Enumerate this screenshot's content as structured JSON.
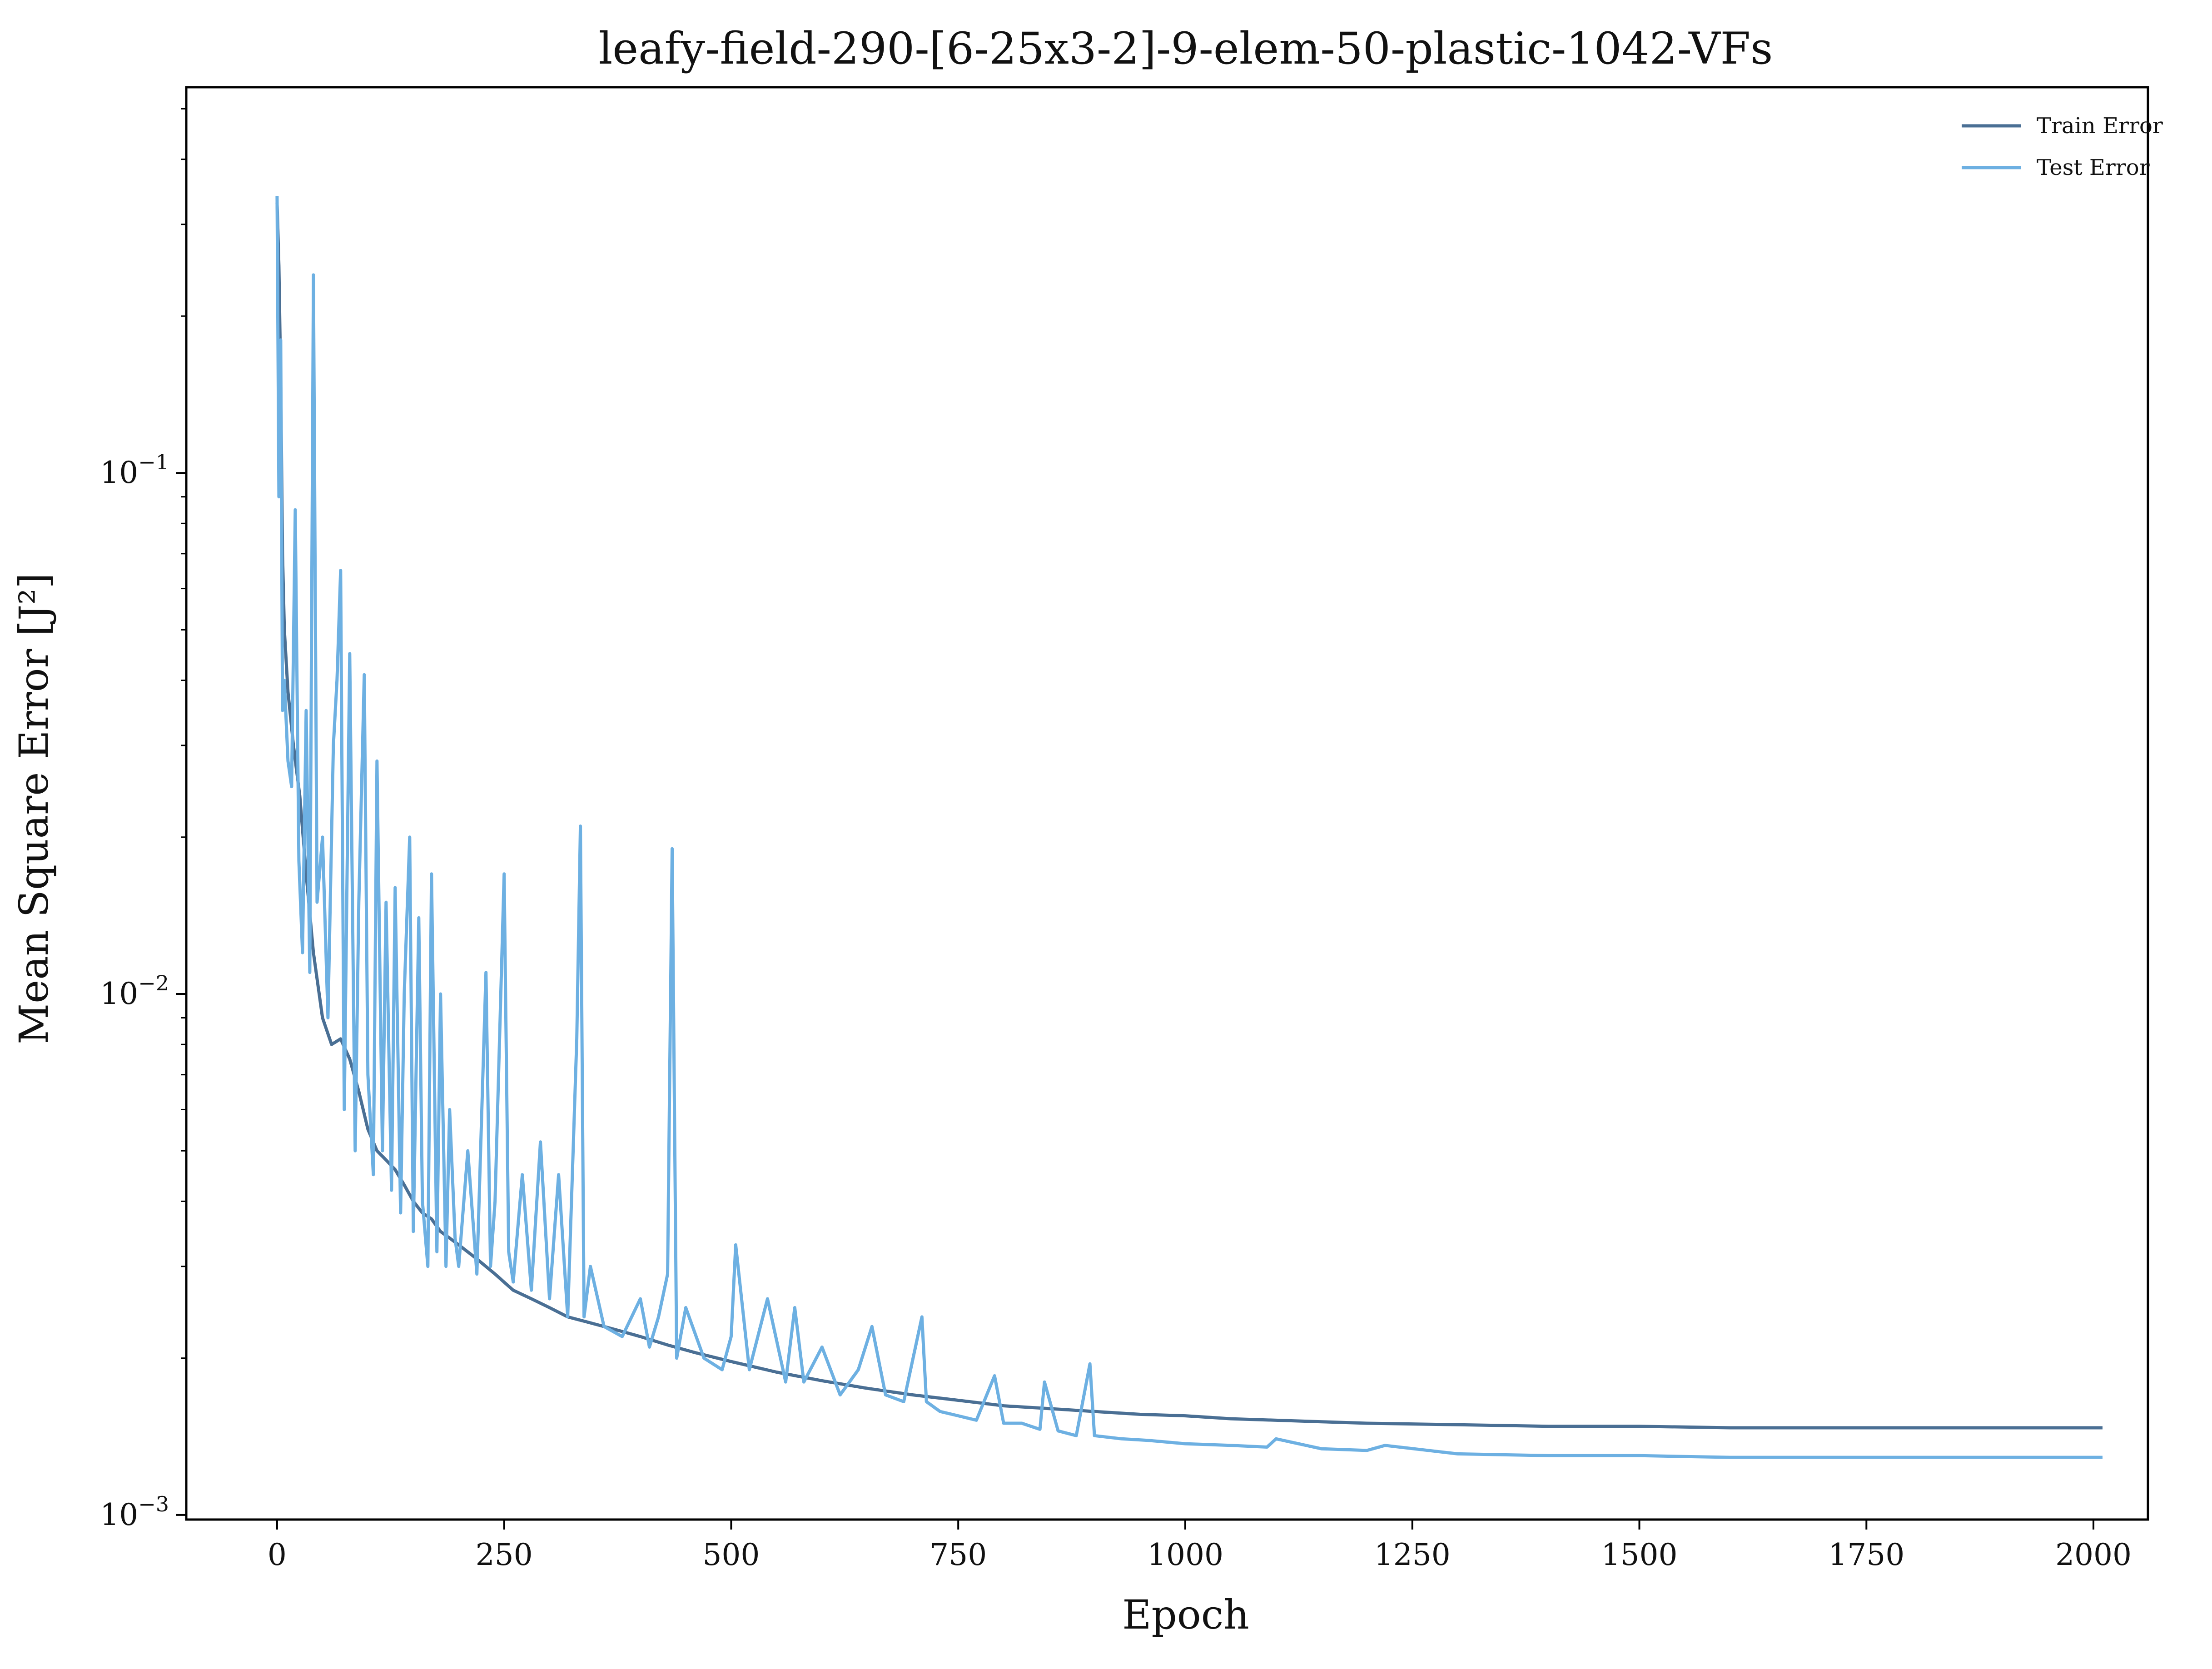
{
  "colors": {
    "train": "#4a6f94",
    "test": "#6db0e2",
    "axis": "#000000"
  },
  "chart_data": {
    "type": "line",
    "title": "leafy-field-290-[6-25x3-2]-9-elem-50-plastic-1042-VFs",
    "xlabel": "Epoch",
    "ylabel": "Mean Square Error [J²]",
    "xlim": [
      -100,
      2060
    ],
    "ylim": [
      0.00098,
      0.55
    ],
    "yscale": "log",
    "grid": false,
    "legend_position": "top-right",
    "xticks": [
      0,
      250,
      500,
      750,
      1000,
      1250,
      1500,
      1750,
      2000
    ],
    "xtick_labels": [
      "0",
      "250",
      "500",
      "750",
      "1000",
      "1250",
      "1500",
      "1750",
      "2000"
    ],
    "yticks": [
      0.001,
      0.01,
      0.1
    ],
    "ytick_labels": [
      {
        "base": "10",
        "exp": "−3"
      },
      {
        "base": "10",
        "exp": "−2"
      },
      {
        "base": "10",
        "exp": "−1"
      }
    ],
    "series": [
      {
        "name": "Train Error",
        "color": "#4a6f94",
        "x": [
          0,
          2,
          4,
          6,
          8,
          12,
          18,
          25,
          32,
          40,
          50,
          60,
          70,
          80,
          90,
          100,
          110,
          120,
          130,
          140,
          150,
          160,
          170,
          180,
          190,
          200,
          220,
          240,
          260,
          280,
          300,
          320,
          340,
          360,
          380,
          400,
          430,
          460,
          500,
          550,
          600,
          650,
          700,
          750,
          800,
          850,
          900,
          950,
          1000,
          1050,
          1100,
          1150,
          1200,
          1300,
          1400,
          1500,
          1600,
          1700,
          1800,
          1900,
          2010
        ],
        "y": [
          0.33,
          0.25,
          0.15,
          0.07,
          0.05,
          0.038,
          0.03,
          0.024,
          0.017,
          0.012,
          0.009,
          0.008,
          0.0082,
          0.0075,
          0.0065,
          0.0055,
          0.005,
          0.0048,
          0.0046,
          0.0043,
          0.004,
          0.0038,
          0.0037,
          0.0035,
          0.0034,
          0.0033,
          0.0031,
          0.0029,
          0.0027,
          0.0026,
          0.0025,
          0.0024,
          0.00235,
          0.0023,
          0.00225,
          0.0022,
          0.00212,
          0.00205,
          0.00197,
          0.00188,
          0.00181,
          0.00175,
          0.0017,
          0.00166,
          0.00162,
          0.0016,
          0.00158,
          0.00156,
          0.00155,
          0.00153,
          0.00152,
          0.00151,
          0.0015,
          0.00149,
          0.00148,
          0.00148,
          0.00147,
          0.00147,
          0.00147,
          0.00147,
          0.00147
        ]
      },
      {
        "name": "Test Error",
        "color": "#6db0e2",
        "x": [
          0,
          2,
          4,
          6,
          8,
          12,
          16,
          20,
          24,
          28,
          32,
          36,
          40,
          44,
          50,
          56,
          62,
          66,
          70,
          74,
          80,
          86,
          90,
          96,
          100,
          106,
          110,
          116,
          120,
          126,
          130,
          136,
          140,
          146,
          150,
          156,
          160,
          166,
          170,
          176,
          180,
          186,
          190,
          196,
          200,
          210,
          220,
          230,
          235,
          240,
          250,
          255,
          260,
          270,
          280,
          290,
          300,
          310,
          320,
          330,
          334,
          338,
          345,
          360,
          380,
          400,
          410,
          420,
          430,
          435,
          440,
          450,
          470,
          490,
          500,
          505,
          520,
          540,
          560,
          570,
          580,
          600,
          620,
          640,
          655,
          670,
          690,
          710,
          715,
          730,
          750,
          770,
          790,
          800,
          820,
          840,
          845,
          860,
          880,
          895,
          900,
          930,
          960,
          1000,
          1050,
          1090,
          1100,
          1150,
          1200,
          1220,
          1300,
          1400,
          1500,
          1600,
          1700,
          1800,
          1900,
          2010
        ],
        "y": [
          0.34,
          0.09,
          0.18,
          0.035,
          0.04,
          0.028,
          0.025,
          0.085,
          0.018,
          0.012,
          0.035,
          0.011,
          0.24,
          0.015,
          0.02,
          0.009,
          0.03,
          0.04,
          0.065,
          0.006,
          0.045,
          0.005,
          0.015,
          0.041,
          0.007,
          0.0045,
          0.028,
          0.005,
          0.015,
          0.0042,
          0.016,
          0.0038,
          0.01,
          0.02,
          0.0035,
          0.014,
          0.004,
          0.003,
          0.017,
          0.0032,
          0.01,
          0.003,
          0.006,
          0.0034,
          0.003,
          0.005,
          0.0029,
          0.011,
          0.003,
          0.004,
          0.017,
          0.0032,
          0.0028,
          0.0045,
          0.0027,
          0.0052,
          0.0026,
          0.0045,
          0.0024,
          0.0082,
          0.021,
          0.0024,
          0.003,
          0.0023,
          0.0022,
          0.0026,
          0.0021,
          0.0024,
          0.0029,
          0.019,
          0.002,
          0.0025,
          0.002,
          0.0019,
          0.0022,
          0.0033,
          0.0019,
          0.0026,
          0.0018,
          0.0025,
          0.0018,
          0.0021,
          0.0017,
          0.0019,
          0.0023,
          0.0017,
          0.00165,
          0.0024,
          0.00165,
          0.00158,
          0.00155,
          0.00152,
          0.00185,
          0.0015,
          0.0015,
          0.00146,
          0.0018,
          0.00145,
          0.00142,
          0.00195,
          0.00142,
          0.0014,
          0.00139,
          0.00137,
          0.00136,
          0.00135,
          0.0014,
          0.00134,
          0.00133,
          0.00136,
          0.00131,
          0.0013,
          0.0013,
          0.00129,
          0.00129,
          0.00129,
          0.00129,
          0.00129
        ]
      }
    ]
  }
}
